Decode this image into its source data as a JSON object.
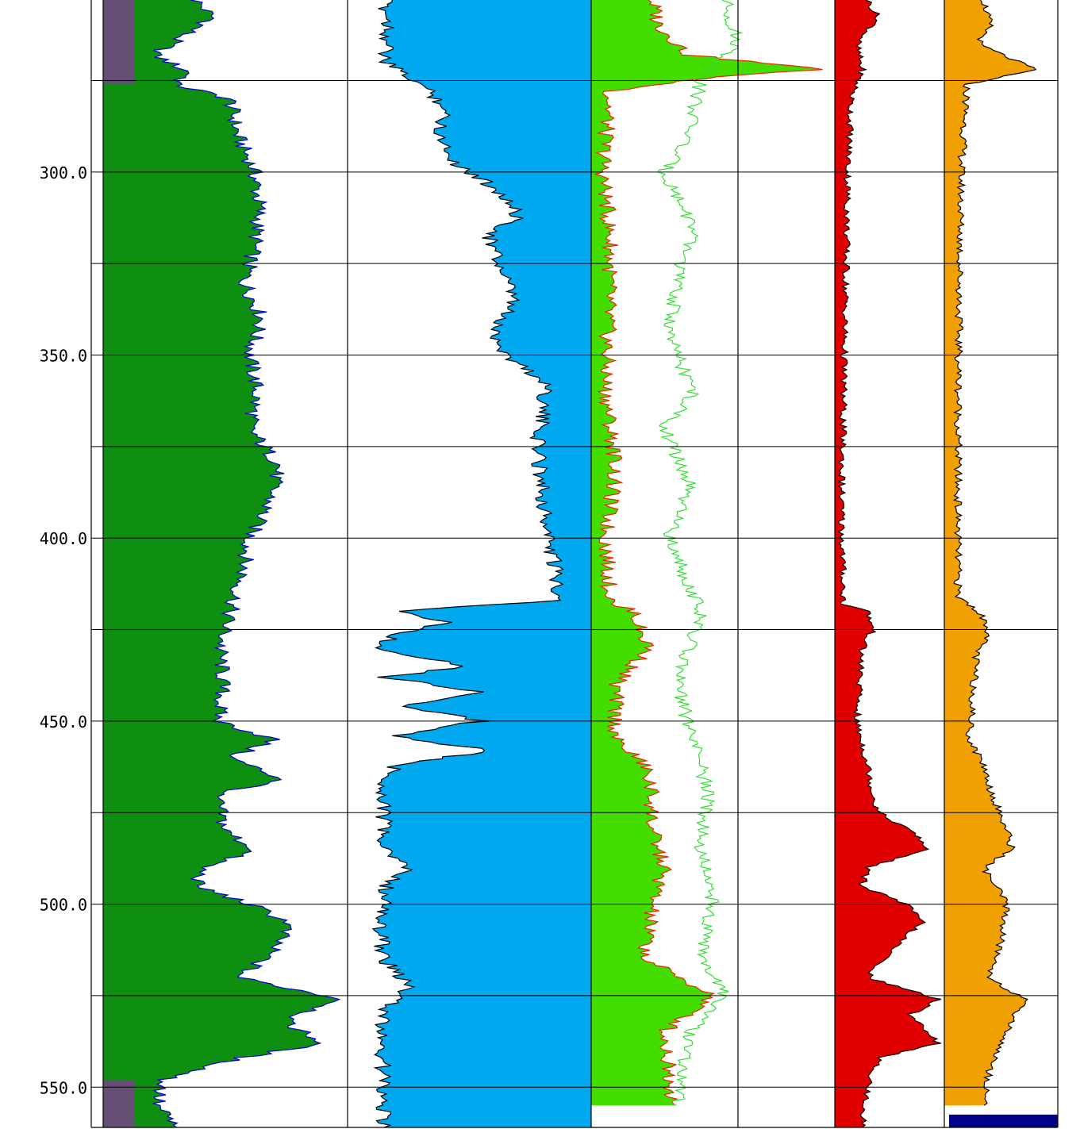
{
  "chart_data": {
    "type": "area",
    "title": "",
    "ylabel": "",
    "ylim": [
      253,
      561
    ],
    "y_inverted": true,
    "depth_ticks": [
      {
        "value": 300,
        "label": "300.0"
      },
      {
        "value": 350,
        "label": "350.0"
      },
      {
        "value": 400,
        "label": "400.0"
      },
      {
        "value": 450,
        "label": "450.0"
      },
      {
        "value": 500,
        "label": "500.0"
      },
      {
        "value": 550,
        "label": "550.0"
      }
    ],
    "depth_gridlines": [
      275,
      300,
      325,
      350,
      375,
      400,
      425,
      450,
      475,
      500,
      525,
      550
    ],
    "track_dividers": 5,
    "tracks": [
      {
        "fill_color": "#0f8f0f",
        "shale_color": "#7a3f8f",
        "curve_color": "#0000cc",
        "fill_from": "left",
        "x_range": [
          0,
          1
        ],
        "shale_zones": [
          [
            253,
            276
          ],
          [
            548,
            561
          ]
        ],
        "points": [
          [
            253,
            0.38
          ],
          [
            258,
            0.45
          ],
          [
            263,
            0.32
          ],
          [
            268,
            0.21
          ],
          [
            273,
            0.36
          ],
          [
            276,
            0.29
          ],
          [
            280,
            0.52
          ],
          [
            290,
            0.55
          ],
          [
            300,
            0.62
          ],
          [
            310,
            0.64
          ],
          [
            320,
            0.62
          ],
          [
            330,
            0.58
          ],
          [
            340,
            0.65
          ],
          [
            350,
            0.6
          ],
          [
            360,
            0.63
          ],
          [
            370,
            0.6
          ],
          [
            380,
            0.72
          ],
          [
            390,
            0.68
          ],
          [
            400,
            0.6
          ],
          [
            410,
            0.57
          ],
          [
            420,
            0.52
          ],
          [
            430,
            0.48
          ],
          [
            440,
            0.49
          ],
          [
            450,
            0.47
          ],
          [
            455,
            0.7
          ],
          [
            460,
            0.52
          ],
          [
            466,
            0.74
          ],
          [
            470,
            0.46
          ],
          [
            480,
            0.5
          ],
          [
            485,
            0.62
          ],
          [
            490,
            0.41
          ],
          [
            495,
            0.38
          ],
          [
            500,
            0.6
          ],
          [
            505,
            0.76
          ],
          [
            510,
            0.72
          ],
          [
            515,
            0.66
          ],
          [
            520,
            0.55
          ],
          [
            526,
            0.98
          ],
          [
            532,
            0.74
          ],
          [
            538,
            0.9
          ],
          [
            542,
            0.56
          ],
          [
            548,
            0.25
          ],
          [
            555,
            0.22
          ],
          [
            561,
            0.3
          ]
        ]
      },
      {
        "fill_color": "#00a8f0",
        "curve_color": "#000000",
        "fill_from": "right",
        "x_range": [
          0,
          1
        ],
        "points": [
          [
            253,
            0.85
          ],
          [
            260,
            0.83
          ],
          [
            270,
            0.85
          ],
          [
            276,
            0.7
          ],
          [
            282,
            0.6
          ],
          [
            290,
            0.62
          ],
          [
            298,
            0.55
          ],
          [
            305,
            0.38
          ],
          [
            312,
            0.3
          ],
          [
            318,
            0.42
          ],
          [
            325,
            0.38
          ],
          [
            335,
            0.32
          ],
          [
            343,
            0.4
          ],
          [
            350,
            0.35
          ],
          [
            358,
            0.18
          ],
          [
            365,
            0.2
          ],
          [
            375,
            0.22
          ],
          [
            385,
            0.2
          ],
          [
            395,
            0.19
          ],
          [
            405,
            0.16
          ],
          [
            412,
            0.14
          ],
          [
            417,
            0.12
          ],
          [
            420,
            0.8
          ],
          [
            423,
            0.6
          ],
          [
            427,
            0.82
          ],
          [
            430,
            0.88
          ],
          [
            435,
            0.5
          ],
          [
            438,
            0.85
          ],
          [
            442,
            0.45
          ],
          [
            446,
            0.78
          ],
          [
            450,
            0.45
          ],
          [
            454,
            0.82
          ],
          [
            458,
            0.42
          ],
          [
            462,
            0.8
          ],
          [
            466,
            0.85
          ],
          [
            475,
            0.85
          ],
          [
            485,
            0.86
          ],
          [
            490,
            0.75
          ],
          [
            495,
            0.84
          ],
          [
            505,
            0.87
          ],
          [
            515,
            0.85
          ],
          [
            522,
            0.75
          ],
          [
            530,
            0.86
          ],
          [
            540,
            0.86
          ],
          [
            550,
            0.85
          ],
          [
            561,
            0.85
          ]
        ]
      },
      {
        "fill_color": "#44dd00",
        "curve_color": "#ee2200",
        "second_curve_color": "#33dd33",
        "fill_from": "left",
        "x_range": [
          0,
          1
        ],
        "points": [
          [
            253,
            0.25
          ],
          [
            260,
            0.28
          ],
          [
            268,
            0.4
          ],
          [
            272,
            0.95
          ],
          [
            274,
            0.5
          ],
          [
            278,
            0.08
          ],
          [
            290,
            0.06
          ],
          [
            300,
            0.05
          ],
          [
            320,
            0.08
          ],
          [
            340,
            0.07
          ],
          [
            360,
            0.06
          ],
          [
            380,
            0.1
          ],
          [
            400,
            0.06
          ],
          [
            418,
            0.08
          ],
          [
            420,
            0.18
          ],
          [
            425,
            0.2
          ],
          [
            430,
            0.24
          ],
          [
            440,
            0.1
          ],
          [
            455,
            0.1
          ],
          [
            462,
            0.22
          ],
          [
            470,
            0.25
          ],
          [
            480,
            0.25
          ],
          [
            490,
            0.3
          ],
          [
            500,
            0.25
          ],
          [
            515,
            0.22
          ],
          [
            525,
            0.5
          ],
          [
            535,
            0.3
          ],
          [
            545,
            0.32
          ],
          [
            555,
            0.34
          ]
        ],
        "points2": [
          [
            253,
            0.55
          ],
          [
            265,
            0.6
          ],
          [
            275,
            0.45
          ],
          [
            290,
            0.4
          ],
          [
            300,
            0.3
          ],
          [
            315,
            0.42
          ],
          [
            330,
            0.35
          ],
          [
            345,
            0.32
          ],
          [
            360,
            0.42
          ],
          [
            370,
            0.3
          ],
          [
            385,
            0.4
          ],
          [
            400,
            0.32
          ],
          [
            420,
            0.45
          ],
          [
            440,
            0.35
          ],
          [
            455,
            0.42
          ],
          [
            470,
            0.48
          ],
          [
            485,
            0.45
          ],
          [
            500,
            0.5
          ],
          [
            515,
            0.45
          ],
          [
            525,
            0.55
          ],
          [
            535,
            0.4
          ],
          [
            545,
            0.38
          ],
          [
            555,
            0.35
          ]
        ]
      },
      {
        "fill_color": "#e00000",
        "curve_color": "#000000",
        "fill_from": "left",
        "x_range": [
          0,
          1
        ],
        "points": [
          [
            253,
            0.3
          ],
          [
            258,
            0.4
          ],
          [
            265,
            0.2
          ],
          [
            272,
            0.25
          ],
          [
            280,
            0.15
          ],
          [
            300,
            0.12
          ],
          [
            330,
            0.1
          ],
          [
            360,
            0.08
          ],
          [
            390,
            0.06
          ],
          [
            418,
            0.08
          ],
          [
            420,
            0.3
          ],
          [
            425,
            0.35
          ],
          [
            430,
            0.25
          ],
          [
            450,
            0.2
          ],
          [
            462,
            0.3
          ],
          [
            470,
            0.35
          ],
          [
            475,
            0.4
          ],
          [
            480,
            0.7
          ],
          [
            485,
            0.85
          ],
          [
            490,
            0.3
          ],
          [
            495,
            0.25
          ],
          [
            500,
            0.65
          ],
          [
            505,
            0.8
          ],
          [
            510,
            0.6
          ],
          [
            515,
            0.45
          ],
          [
            520,
            0.3
          ],
          [
            526,
            0.95
          ],
          [
            530,
            0.7
          ],
          [
            538,
            0.95
          ],
          [
            542,
            0.4
          ],
          [
            550,
            0.3
          ],
          [
            561,
            0.25
          ]
        ]
      },
      {
        "fill_color": "#f0a000",
        "curve_color": "#000000",
        "fill_from": "left",
        "x_range": [
          0,
          1
        ],
        "bottom_block_color": "#000088",
        "points": [
          [
            253,
            0.35
          ],
          [
            260,
            0.4
          ],
          [
            265,
            0.3
          ],
          [
            272,
            0.8
          ],
          [
            276,
            0.2
          ],
          [
            300,
            0.15
          ],
          [
            340,
            0.13
          ],
          [
            380,
            0.12
          ],
          [
            416,
            0.12
          ],
          [
            420,
            0.3
          ],
          [
            425,
            0.4
          ],
          [
            432,
            0.28
          ],
          [
            445,
            0.25
          ],
          [
            455,
            0.22
          ],
          [
            462,
            0.35
          ],
          [
            468,
            0.4
          ],
          [
            480,
            0.55
          ],
          [
            485,
            0.6
          ],
          [
            490,
            0.35
          ],
          [
            500,
            0.55
          ],
          [
            510,
            0.5
          ],
          [
            520,
            0.4
          ],
          [
            526,
            0.7
          ],
          [
            535,
            0.55
          ],
          [
            545,
            0.4
          ],
          [
            555,
            0.35
          ]
        ]
      }
    ]
  }
}
